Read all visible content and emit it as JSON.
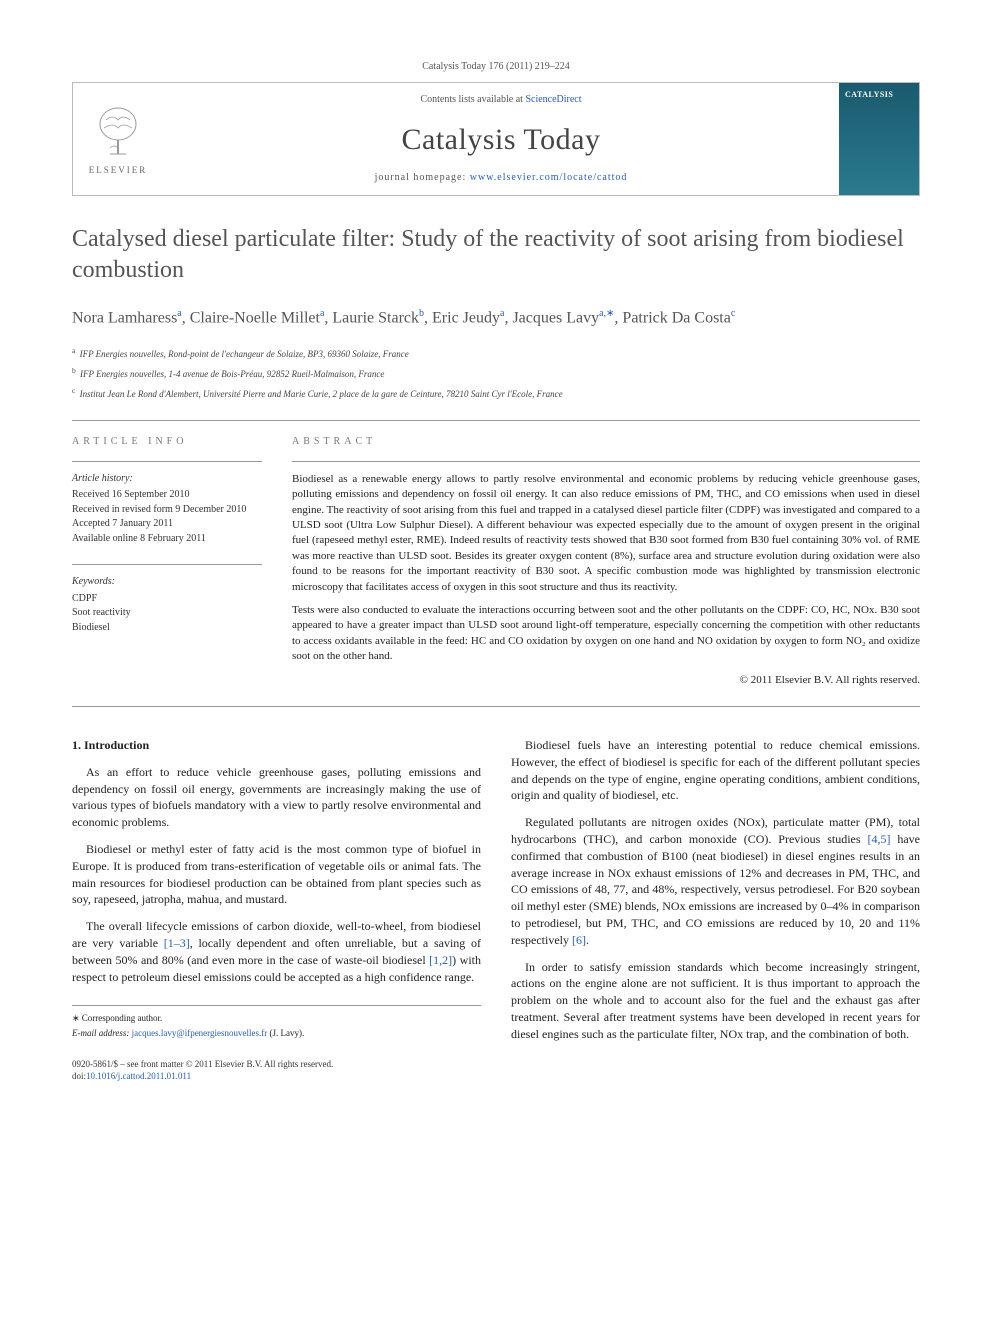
{
  "citation": "Catalysis Today 176 (2011) 219–224",
  "header": {
    "publisher_logo_text": "ELSEVIER",
    "contents_prefix": "Contents lists available at ",
    "contents_link": "ScienceDirect",
    "journal_name": "Catalysis Today",
    "homepage_prefix": "journal homepage: ",
    "homepage_url": "www.elsevier.com/locate/cattod",
    "cover_label": "CATALYSIS"
  },
  "article": {
    "title": "Catalysed diesel particulate filter: Study of the reactivity of soot arising from biodiesel combustion",
    "authors_html": "Nora Lamharess<sup>a</sup>, Claire-Noelle Millet<sup>a</sup>, Laurie Starck<sup>b</sup>, Eric Jeudy<sup>a</sup>, Jacques Lavy<sup>a,∗</sup>, Patrick Da Costa<sup>c</sup>",
    "affiliations": [
      {
        "marker": "a",
        "text": "IFP Energies nouvelles, Rond-point de l'echangeur de Solaize, BP3, 69360 Solaize, France"
      },
      {
        "marker": "b",
        "text": "IFP Energies nouvelles, 1-4 avenue de Bois-Préau, 92852 Rueil-Malmaison, France"
      },
      {
        "marker": "c",
        "text": "Institut Jean Le Rond d'Alembert, Université Pierre and Marie Curie, 2 place de la gare de Ceinture, 78210 Saint Cyr l'Ecole, France"
      }
    ]
  },
  "info": {
    "heading_info": "article info",
    "heading_abstract": "abstract",
    "history_label": "Article history:",
    "history": [
      "Received 16 September 2010",
      "Received in revised form 9 December 2010",
      "Accepted 7 January 2011",
      "Available online 8 February 2011"
    ],
    "keywords_label": "Keywords:",
    "keywords": [
      "CDPF",
      "Soot reactivity",
      "Biodiesel"
    ]
  },
  "abstract": {
    "p1": "Biodiesel as a renewable energy allows to partly resolve environmental and economic problems by reducing vehicle greenhouse gases, polluting emissions and dependency on fossil oil energy. It can also reduce emissions of PM, THC, and CO emissions when used in diesel engine. The reactivity of soot arising from this fuel and trapped in a catalysed diesel particle filter (CDPF) was investigated and compared to a ULSD soot (Ultra Low Sulphur Diesel). A different behaviour was expected especially due to the amount of oxygen present in the original fuel (rapeseed methyl ester, RME). Indeed results of reactivity tests showed that B30 soot formed from B30 fuel containing 30% vol. of RME was more reactive than ULSD soot. Besides its greater oxygen content (8%), surface area and structure evolution during oxidation were also found to be reasons for the important reactivity of B30 soot. A specific combustion mode was highlighted by transmission electronic microscopy that facilitates access of oxygen in this soot structure and thus its reactivity.",
    "p2": "Tests were also conducted to evaluate the interactions occurring between soot and the other pollutants on the CDPF: CO, HC, NOx. B30 soot appeared to have a greater impact than ULSD soot around light-off temperature, especially concerning the competition with other reductants to access oxidants available in the feed: HC and CO oxidation by oxygen on one hand and NO oxidation by oxygen to form NO₂ and oxidize soot on the other hand.",
    "copyright": "© 2011 Elsevier B.V. All rights reserved."
  },
  "body": {
    "section1_heading": "1. Introduction",
    "col1": [
      "As an effort to reduce vehicle greenhouse gases, polluting emissions and dependency on fossil oil energy, governments are increasingly making the use of various types of biofuels mandatory with a view to partly resolve environmental and economic problems.",
      "Biodiesel or methyl ester of fatty acid is the most common type of biofuel in Europe. It is produced from trans-esterification of vegetable oils or animal fats. The main resources for biodiesel production can be obtained from plant species such as soy, rapeseed, jatropha, mahua, and mustard.",
      "The overall lifecycle emissions of carbon dioxide, well-to-wheel, from biodiesel are very variable [1–3], locally dependent and often unreliable, but a saving of between 50% and 80% (and even more in the case of waste-oil biodiesel [1,2]) with respect to petroleum diesel emissions could be accepted as a high confidence range."
    ],
    "col2": [
      "Biodiesel fuels have an interesting potential to reduce chemical emissions. However, the effect of biodiesel is specific for each of the different pollutant species and depends on the type of engine, engine operating conditions, ambient conditions, origin and quality of biodiesel, etc.",
      "Regulated pollutants are nitrogen oxides (NOx), particulate matter (PM), total hydrocarbons (THC), and carbon monoxide (CO). Previous studies [4,5] have confirmed that combustion of B100 (neat biodiesel) in diesel engines results in an average increase in NOx exhaust emissions of 12% and decreases in PM, THC, and CO emissions of 48, 77, and 48%, respectively, versus petrodiesel. For B20 soybean oil methyl ester (SME) blends, NOx emissions are increased by 0–4% in comparison to petrodiesel, but PM, THC, and CO emissions are reduced by 10, 20 and 11% respectively [6].",
      "In order to satisfy emission standards which become increasingly stringent, actions on the engine alone are not sufficient. It is thus important to approach the problem on the whole and to account also for the fuel and the exhaust gas after treatment. Several after treatment systems have been developed in recent years for diesel engines such as the particulate filter, NOx trap, and the combination of both."
    ]
  },
  "footer": {
    "corresponding": "∗ Corresponding author.",
    "email_label": "E-mail address: ",
    "email": "jacques.lavy@ifpenergiesnouvelles.fr",
    "email_name": " (J. Lavy).",
    "issn_line": "0920-5861/$ – see front matter © 2011 Elsevier B.V. All rights reserved.",
    "doi_prefix": "doi:",
    "doi": "10.1016/j.cattod.2011.01.011"
  }
}
